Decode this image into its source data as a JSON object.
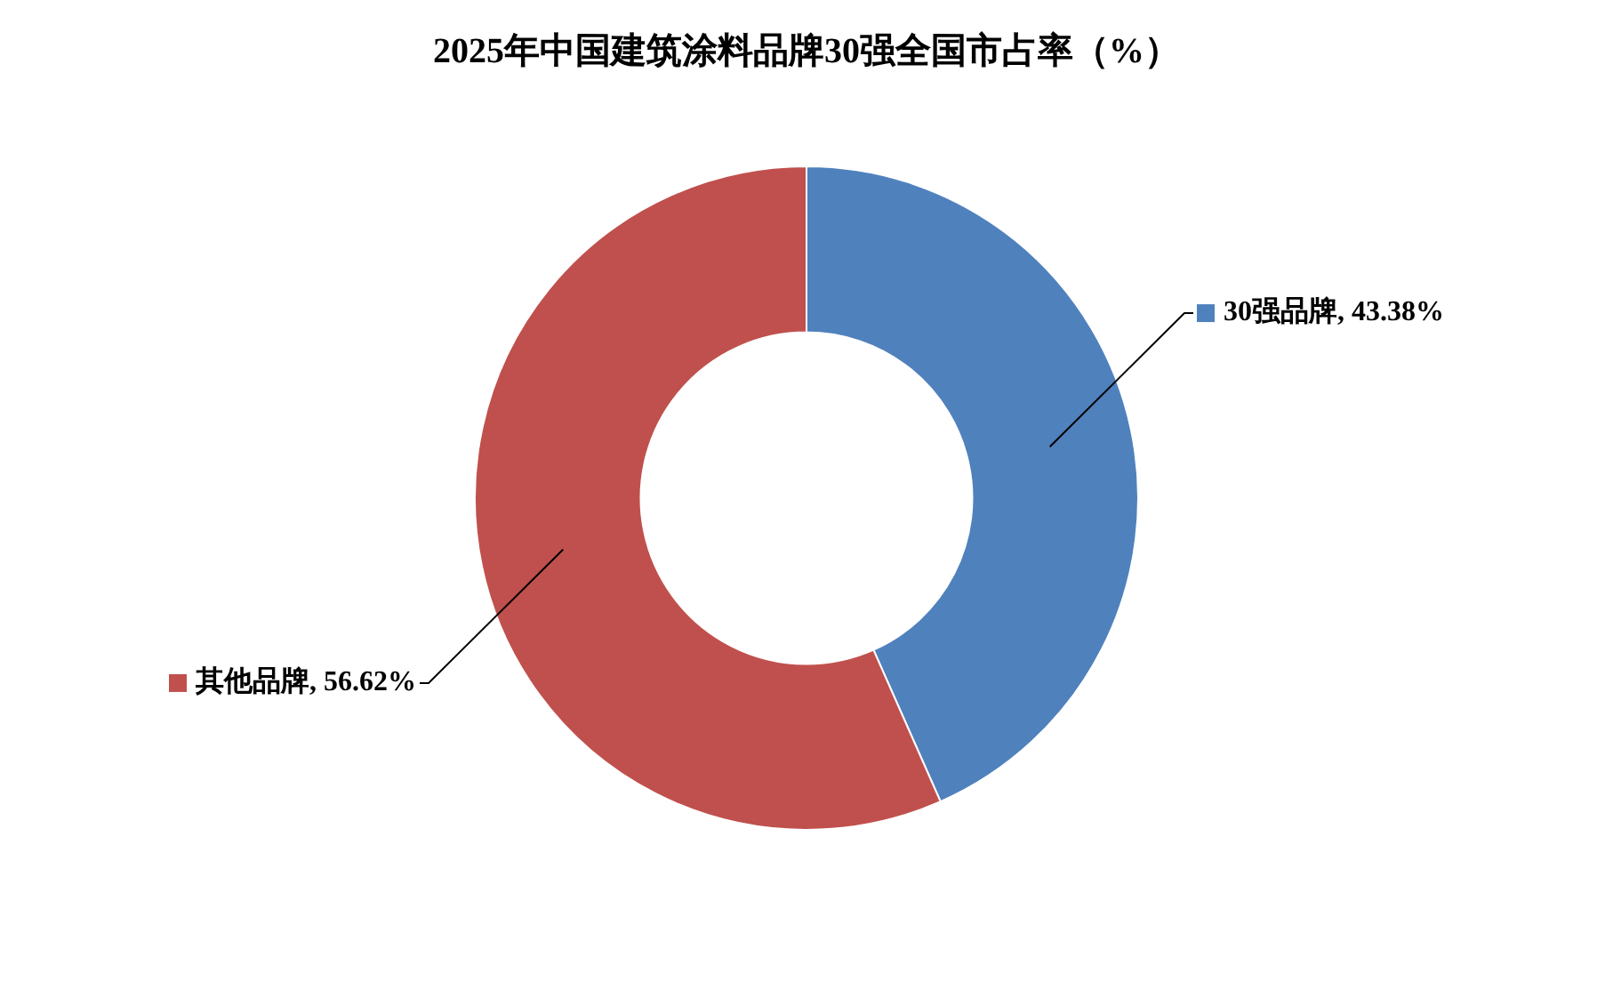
{
  "chart_data": {
    "type": "donut",
    "title": "2025年中国建筑涂料品牌30强全国市占率（%）",
    "categories": [
      "30强品牌",
      "其他品牌"
    ],
    "values": [
      43.38,
      56.62
    ],
    "colors": [
      "#4f81bd",
      "#c0504d"
    ],
    "value_labels": [
      "43.38%",
      "56.62%"
    ],
    "legend": "right"
  }
}
